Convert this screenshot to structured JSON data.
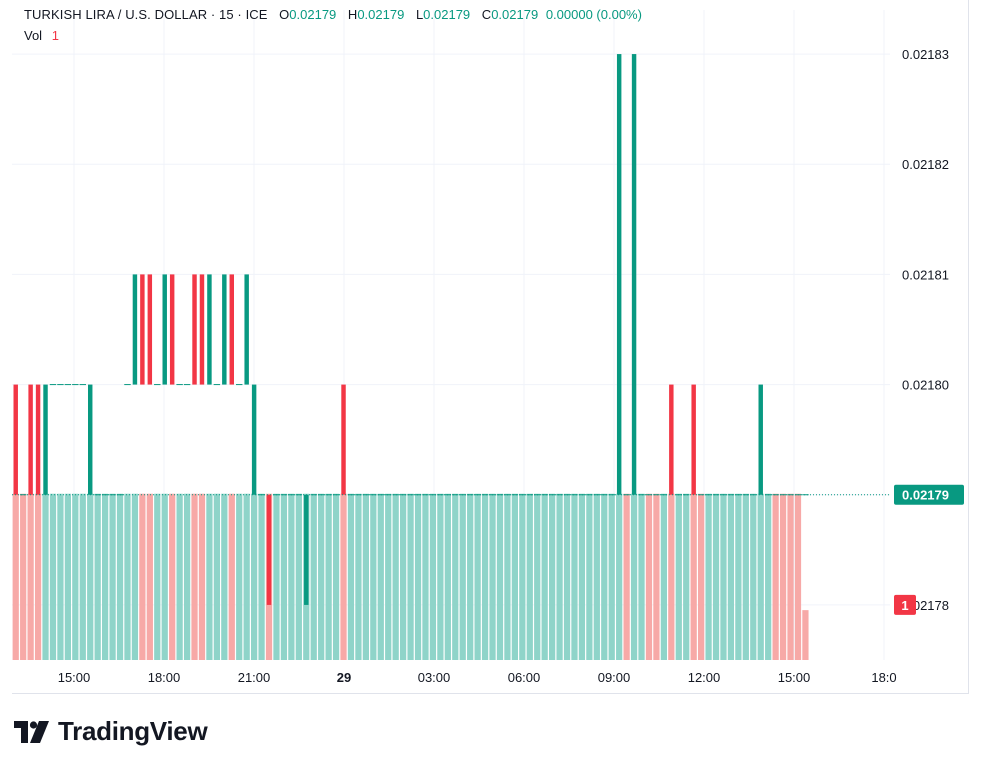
{
  "header": {
    "symbol": "TURKISH LIRA / U.S. DOLLAR · 15 · ICE",
    "o_label": "O",
    "o_value": "0.02179",
    "h_label": "H",
    "h_value": "0.02179",
    "l_label": "L",
    "l_value": "0.02179",
    "c_label": "C",
    "c_value": "0.02179",
    "change": "0.00000 (0.00%)",
    "vol_label": "Vol",
    "vol_value": "1"
  },
  "brand": {
    "name": "TradingView"
  },
  "colors": {
    "up": "#089981",
    "down": "#f23645",
    "vol_up": "#8fd4c9",
    "vol_down": "#f7a9a7",
    "grid": "#f0f3fa"
  },
  "chart_data": {
    "type": "candlestick",
    "ylim": [
      0.021775,
      0.021834
    ],
    "y_ticks": [
      "0.02183",
      "0.02182",
      "0.02181",
      "0.02180",
      "0.02179",
      "0.02178"
    ],
    "x_ticks": [
      "15:00",
      "18:00",
      "21:00",
      "29",
      "03:00",
      "06:00",
      "09:00",
      "12:00",
      "15:00",
      "18:0"
    ],
    "last_price": "0.02179",
    "last_volume": "1",
    "candles": [
      {
        "dir": "down",
        "open": 0.0218,
        "close": 0.02179
      },
      {
        "dir": "flat",
        "open": 0.02179,
        "close": 0.02179
      },
      {
        "dir": "down",
        "open": 0.0218,
        "close": 0.02179
      },
      {
        "dir": "down",
        "open": 0.0218,
        "close": 0.02179
      },
      {
        "dir": "up",
        "open": 0.02179,
        "close": 0.0218
      },
      {
        "dir": "flat",
        "open": 0.0218,
        "close": 0.0218
      },
      {
        "dir": "flat",
        "open": 0.0218,
        "close": 0.0218
      },
      {
        "dir": "flat",
        "open": 0.0218,
        "close": 0.0218
      },
      {
        "dir": "flat",
        "open": 0.0218,
        "close": 0.0218
      },
      {
        "dir": "flat",
        "open": 0.0218,
        "close": 0.0218
      },
      {
        "dir": "up",
        "open": 0.02179,
        "close": 0.0218
      },
      {
        "dir": "flat",
        "open": 0.02179,
        "close": 0.02179
      },
      {
        "dir": "flat",
        "open": 0.02179,
        "close": 0.02179
      },
      {
        "dir": "flat",
        "open": 0.02179,
        "close": 0.02179
      },
      {
        "dir": "flat",
        "open": 0.02179,
        "close": 0.02179
      },
      {
        "dir": "flat",
        "open": 0.0218,
        "close": 0.0218
      },
      {
        "dir": "up",
        "open": 0.0218,
        "close": 0.02181
      },
      {
        "dir": "down",
        "open": 0.02181,
        "close": 0.0218
      },
      {
        "dir": "down",
        "open": 0.02181,
        "close": 0.0218
      },
      {
        "dir": "flat",
        "open": 0.0218,
        "close": 0.0218
      },
      {
        "dir": "up",
        "open": 0.0218,
        "close": 0.02181
      },
      {
        "dir": "down",
        "open": 0.02181,
        "close": 0.0218
      },
      {
        "dir": "flat",
        "open": 0.0218,
        "close": 0.0218
      },
      {
        "dir": "flat",
        "open": 0.0218,
        "close": 0.0218
      },
      {
        "dir": "down",
        "open": 0.02181,
        "close": 0.0218
      },
      {
        "dir": "down",
        "open": 0.02181,
        "close": 0.0218
      },
      {
        "dir": "up",
        "open": 0.0218,
        "close": 0.02181
      },
      {
        "dir": "flat",
        "open": 0.0218,
        "close": 0.0218
      },
      {
        "dir": "up",
        "open": 0.0218,
        "close": 0.02181
      },
      {
        "dir": "down",
        "open": 0.02181,
        "close": 0.0218
      },
      {
        "dir": "flat",
        "open": 0.0218,
        "close": 0.0218
      },
      {
        "dir": "up",
        "open": 0.0218,
        "close": 0.02181
      },
      {
        "dir": "up",
        "open": 0.02179,
        "close": 0.0218
      },
      {
        "dir": "flat",
        "open": 0.02179,
        "close": 0.02179
      },
      {
        "dir": "down",
        "open": 0.02179,
        "close": 0.02178
      },
      {
        "dir": "flat",
        "open": 0.02179,
        "close": 0.02179
      },
      {
        "dir": "flat",
        "open": 0.02179,
        "close": 0.02179
      },
      {
        "dir": "flat",
        "open": 0.02179,
        "close": 0.02179
      },
      {
        "dir": "flat",
        "open": 0.02179,
        "close": 0.02179
      },
      {
        "dir": "up",
        "open": 0.02178,
        "close": 0.02179
      },
      {
        "dir": "flat",
        "open": 0.02179,
        "close": 0.02179
      },
      {
        "dir": "flat",
        "open": 0.02179,
        "close": 0.02179
      },
      {
        "dir": "flat",
        "open": 0.02179,
        "close": 0.02179
      },
      {
        "dir": "flat",
        "open": 0.02179,
        "close": 0.02179
      },
      {
        "dir": "down",
        "open": 0.0218,
        "close": 0.02179
      },
      {
        "dir": "flat",
        "open": 0.02179,
        "close": 0.02179
      },
      {
        "dir": "flat",
        "open": 0.02179,
        "close": 0.02179
      },
      {
        "dir": "flat",
        "open": 0.02179,
        "close": 0.02179
      },
      {
        "dir": "flat",
        "open": 0.02179,
        "close": 0.02179
      },
      {
        "dir": "flat",
        "open": 0.02179,
        "close": 0.02179
      },
      {
        "dir": "flat",
        "open": 0.02179,
        "close": 0.02179
      },
      {
        "dir": "flat",
        "open": 0.02179,
        "close": 0.02179
      },
      {
        "dir": "flat",
        "open": 0.02179,
        "close": 0.02179
      },
      {
        "dir": "flat",
        "open": 0.02179,
        "close": 0.02179
      },
      {
        "dir": "flat",
        "open": 0.02179,
        "close": 0.02179
      },
      {
        "dir": "flat",
        "open": 0.02179,
        "close": 0.02179
      },
      {
        "dir": "flat",
        "open": 0.02179,
        "close": 0.02179
      },
      {
        "dir": "flat",
        "open": 0.02179,
        "close": 0.02179
      },
      {
        "dir": "flat",
        "open": 0.02179,
        "close": 0.02179
      },
      {
        "dir": "flat",
        "open": 0.02179,
        "close": 0.02179
      },
      {
        "dir": "flat",
        "open": 0.02179,
        "close": 0.02179
      },
      {
        "dir": "flat",
        "open": 0.02179,
        "close": 0.02179
      },
      {
        "dir": "flat",
        "open": 0.02179,
        "close": 0.02179
      },
      {
        "dir": "flat",
        "open": 0.02179,
        "close": 0.02179
      },
      {
        "dir": "flat",
        "open": 0.02179,
        "close": 0.02179
      },
      {
        "dir": "flat",
        "open": 0.02179,
        "close": 0.02179
      },
      {
        "dir": "flat",
        "open": 0.02179,
        "close": 0.02179
      },
      {
        "dir": "flat",
        "open": 0.02179,
        "close": 0.02179
      },
      {
        "dir": "flat",
        "open": 0.02179,
        "close": 0.02179
      },
      {
        "dir": "flat",
        "open": 0.02179,
        "close": 0.02179
      },
      {
        "dir": "flat",
        "open": 0.02179,
        "close": 0.02179
      },
      {
        "dir": "flat",
        "open": 0.02179,
        "close": 0.02179
      },
      {
        "dir": "flat",
        "open": 0.02179,
        "close": 0.02179
      },
      {
        "dir": "flat",
        "open": 0.02179,
        "close": 0.02179
      },
      {
        "dir": "flat",
        "open": 0.02179,
        "close": 0.02179
      },
      {
        "dir": "flat",
        "open": 0.02179,
        "close": 0.02179
      },
      {
        "dir": "flat",
        "open": 0.02179,
        "close": 0.02179
      },
      {
        "dir": "flat",
        "open": 0.02179,
        "close": 0.02179
      },
      {
        "dir": "flat",
        "open": 0.02179,
        "close": 0.02179
      },
      {
        "dir": "flat",
        "open": 0.02179,
        "close": 0.02179
      },
      {
        "dir": "flat",
        "open": 0.02179,
        "close": 0.02179
      },
      {
        "dir": "up",
        "open": 0.02179,
        "close": 0.02183
      },
      {
        "dir": "flat",
        "open": 0.02179,
        "close": 0.02179
      },
      {
        "dir": "up",
        "open": 0.02179,
        "close": 0.02183
      },
      {
        "dir": "flat",
        "open": 0.02179,
        "close": 0.02179
      },
      {
        "dir": "flat",
        "open": 0.02179,
        "close": 0.02179
      },
      {
        "dir": "flat",
        "open": 0.02179,
        "close": 0.02179
      },
      {
        "dir": "flat",
        "open": 0.02179,
        "close": 0.02179
      },
      {
        "dir": "down",
        "open": 0.0218,
        "close": 0.02179
      },
      {
        "dir": "flat",
        "open": 0.02179,
        "close": 0.02179
      },
      {
        "dir": "flat",
        "open": 0.02179,
        "close": 0.02179
      },
      {
        "dir": "down",
        "open": 0.0218,
        "close": 0.02179
      },
      {
        "dir": "flat",
        "open": 0.02179,
        "close": 0.02179
      },
      {
        "dir": "flat",
        "open": 0.02179,
        "close": 0.02179
      },
      {
        "dir": "flat",
        "open": 0.02179,
        "close": 0.02179
      },
      {
        "dir": "flat",
        "open": 0.02179,
        "close": 0.02179
      },
      {
        "dir": "flat",
        "open": 0.02179,
        "close": 0.02179
      },
      {
        "dir": "flat",
        "open": 0.02179,
        "close": 0.02179
      },
      {
        "dir": "flat",
        "open": 0.02179,
        "close": 0.02179
      },
      {
        "dir": "flat",
        "open": 0.02179,
        "close": 0.02179
      },
      {
        "dir": "up",
        "open": 0.02179,
        "close": 0.0218
      },
      {
        "dir": "flat",
        "open": 0.02179,
        "close": 0.02179
      },
      {
        "dir": "flat",
        "open": 0.02179,
        "close": 0.02179
      },
      {
        "dir": "flat",
        "open": 0.02179,
        "close": 0.02179
      },
      {
        "dir": "flat",
        "open": 0.02179,
        "close": 0.02179
      },
      {
        "dir": "flat",
        "open": 0.02179,
        "close": 0.02179
      },
      {
        "dir": "flat",
        "open": 0.02179,
        "close": 0.02179
      }
    ],
    "volume_colors": [
      "down",
      "down",
      "down",
      "down",
      "up",
      "up",
      "up",
      "up",
      "up",
      "up",
      "up",
      "up",
      "up",
      "up",
      "up",
      "up",
      "up",
      "down",
      "down",
      "up",
      "up",
      "down",
      "up",
      "up",
      "down",
      "down",
      "up",
      "up",
      "up",
      "down",
      "up",
      "up",
      "up",
      "up",
      "down",
      "up",
      "up",
      "up",
      "up",
      "up",
      "up",
      "up",
      "up",
      "up",
      "down",
      "up",
      "up",
      "up",
      "up",
      "up",
      "up",
      "up",
      "up",
      "up",
      "up",
      "up",
      "up",
      "up",
      "up",
      "up",
      "up",
      "up",
      "up",
      "up",
      "up",
      "up",
      "up",
      "up",
      "up",
      "up",
      "up",
      "up",
      "up",
      "up",
      "up",
      "up",
      "up",
      "up",
      "up",
      "up",
      "up",
      "up",
      "down",
      "up",
      "up",
      "down",
      "down",
      "up",
      "down",
      "up",
      "up",
      "down",
      "down",
      "up",
      "up",
      "up",
      "up",
      "up",
      "up",
      "up",
      "up",
      "up",
      "down",
      "down",
      "down",
      "down",
      "down",
      "down"
    ],
    "last_volume_fraction": 0.3
  }
}
